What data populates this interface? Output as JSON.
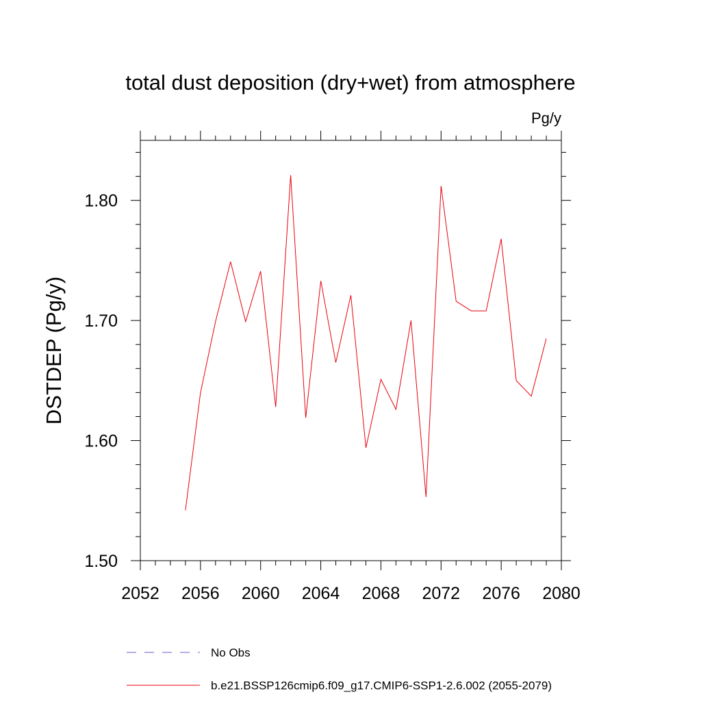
{
  "chart_data": {
    "type": "line",
    "title": "total dust deposition (dry+wet) from atmosphere",
    "units": "Pg/y",
    "ylabel": "DSTDEP  (Pg/y)",
    "xlabel": "",
    "xlim": [
      2052,
      2080
    ],
    "ylim": [
      1.5,
      1.85
    ],
    "x_ticks": [
      "2052",
      "2056",
      "2060",
      "2064",
      "2068",
      "2072",
      "2076",
      "2080"
    ],
    "y_ticks": [
      "1.50",
      "1.60",
      "1.70",
      "1.80"
    ],
    "series": [
      {
        "name": "b.e21.BSSP126cmip6.f09_g17.CMIP6-SSP1-2.6.002 (2055-2079)",
        "color": "#e8000b",
        "x": [
          2055,
          2056,
          2057,
          2058,
          2059,
          2060,
          2061,
          2062,
          2063,
          2064,
          2065,
          2066,
          2067,
          2068,
          2069,
          2070,
          2071,
          2072,
          2073,
          2074,
          2075,
          2076,
          2077,
          2078,
          2079
        ],
        "values": [
          1.542,
          1.64,
          1.699,
          1.749,
          1.699,
          1.741,
          1.628,
          1.821,
          1.619,
          1.733,
          1.665,
          1.721,
          1.594,
          1.651,
          1.626,
          1.7,
          1.553,
          1.812,
          1.716,
          1.708,
          1.708,
          1.768,
          1.65,
          1.637,
          1.685
        ]
      }
    ],
    "legend": [
      {
        "label": "No Obs",
        "style": "dashed",
        "color": "#6a5acd"
      },
      {
        "label": "b.e21.BSSP126cmip6.f09_g17.CMIP6-SSP1-2.6.002 (2055-2079)",
        "style": "solid",
        "color": "#e8000b"
      }
    ]
  }
}
